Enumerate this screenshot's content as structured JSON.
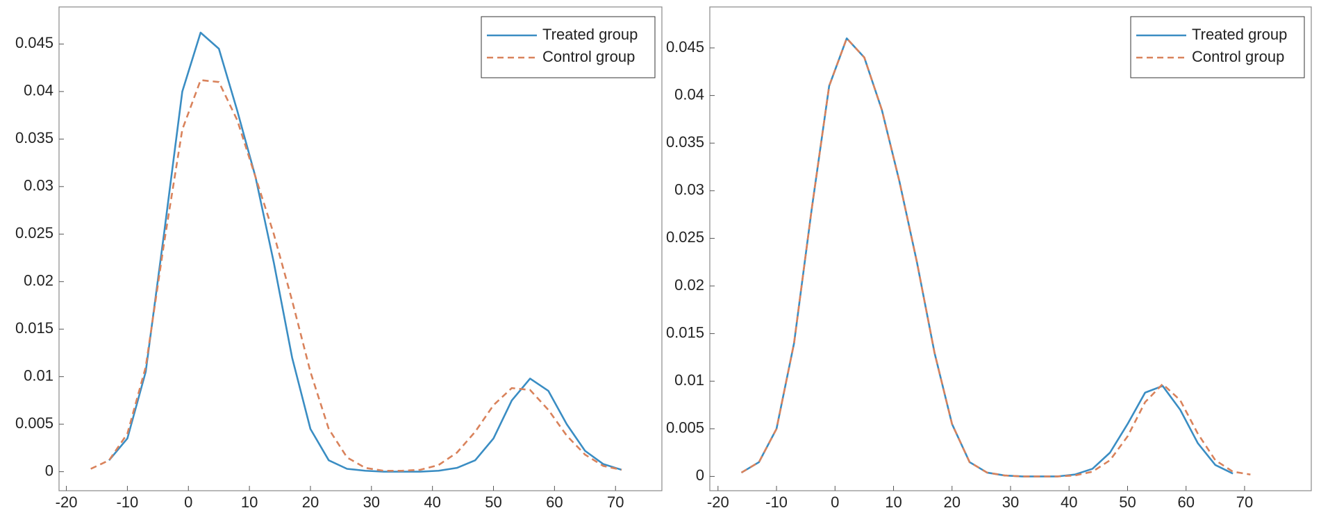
{
  "chart_data": [
    {
      "type": "line",
      "x": [
        -16,
        -13,
        -10,
        -7,
        -4,
        -1,
        2,
        5,
        8,
        11,
        14,
        17,
        20,
        23,
        26,
        29,
        32,
        35,
        38,
        41,
        44,
        47,
        50,
        53,
        56,
        59,
        62,
        65,
        68,
        71
      ],
      "series": [
        {
          "name": "Treated group",
          "color": "#3a8dc3",
          "linestyle": "solid",
          "values": [
            null,
            0.0012,
            0.0035,
            0.0105,
            0.025,
            0.04,
            0.0462,
            0.0445,
            0.038,
            0.031,
            0.022,
            0.012,
            0.0045,
            0.0012,
            0.0003,
            0.0001,
            0,
            0,
            0,
            0.0001,
            0.0004,
            0.0012,
            0.0035,
            0.0075,
            0.0098,
            0.0085,
            0.005,
            0.0022,
            0.0008,
            0.0002
          ]
        },
        {
          "name": "Control group",
          "color": "#d9825b",
          "linestyle": "dashed",
          "values": [
            0.0003,
            0.0012,
            0.004,
            0.011,
            0.024,
            0.036,
            0.0412,
            0.041,
            0.037,
            0.031,
            0.025,
            0.018,
            0.0105,
            0.0045,
            0.0015,
            0.0004,
            0.0001,
            0.0001,
            0.0002,
            0.0007,
            0.002,
            0.0042,
            0.007,
            0.0088,
            0.0086,
            0.0065,
            0.0038,
            0.0018,
            0.0006,
            0.0002
          ]
        }
      ],
      "xlim": [
        -21.2,
        77.6
      ],
      "ylim": [
        -0.002,
        0.0489
      ],
      "xticks": [
        -20,
        -10,
        0,
        10,
        20,
        30,
        40,
        50,
        60,
        70
      ],
      "yticks": [
        0,
        0.005,
        0.01,
        0.015,
        0.02,
        0.025,
        0.03,
        0.035,
        0.04,
        0.045
      ],
      "legend": "upper right"
    },
    {
      "type": "line",
      "x": [
        -16,
        -13,
        -10,
        -7,
        -4,
        -1,
        2,
        5,
        8,
        11,
        14,
        17,
        20,
        23,
        26,
        29,
        32,
        35,
        38,
        41,
        44,
        47,
        50,
        53,
        56,
        59,
        62,
        65,
        68,
        71
      ],
      "series": [
        {
          "name": "Treated group",
          "color": "#3a8dc3",
          "linestyle": "solid",
          "values": [
            0.0004,
            0.0015,
            0.005,
            0.014,
            0.028,
            0.041,
            0.046,
            0.044,
            0.0385,
            0.031,
            0.0225,
            0.013,
            0.0055,
            0.0015,
            0.0004,
            0.0001,
            0,
            0,
            0,
            0.0002,
            0.0008,
            0.0025,
            0.0055,
            0.0088,
            0.0095,
            0.007,
            0.0035,
            0.0012,
            0.0003,
            null
          ]
        },
        {
          "name": "Control group",
          "color": "#d9825b",
          "linestyle": "dashed",
          "values": [
            0.0004,
            0.0015,
            0.005,
            0.014,
            0.028,
            0.041,
            0.046,
            0.044,
            0.0385,
            0.031,
            0.0225,
            0.013,
            0.0055,
            0.0015,
            0.0004,
            0.0001,
            0,
            0,
            0,
            0.0001,
            0.0005,
            0.0017,
            0.0042,
            0.0078,
            0.0097,
            0.008,
            0.0045,
            0.0017,
            0.0005,
            0.0002
          ]
        }
      ],
      "xlim": [
        -21.4,
        81.4
      ],
      "ylim": [
        -0.0015,
        0.0493
      ],
      "xticks": [
        -20,
        -10,
        0,
        10,
        20,
        30,
        40,
        50,
        60,
        70
      ],
      "yticks": [
        0,
        0.005,
        0.01,
        0.015,
        0.02,
        0.025,
        0.03,
        0.035,
        0.04,
        0.045
      ],
      "legend": "upper right"
    }
  ]
}
